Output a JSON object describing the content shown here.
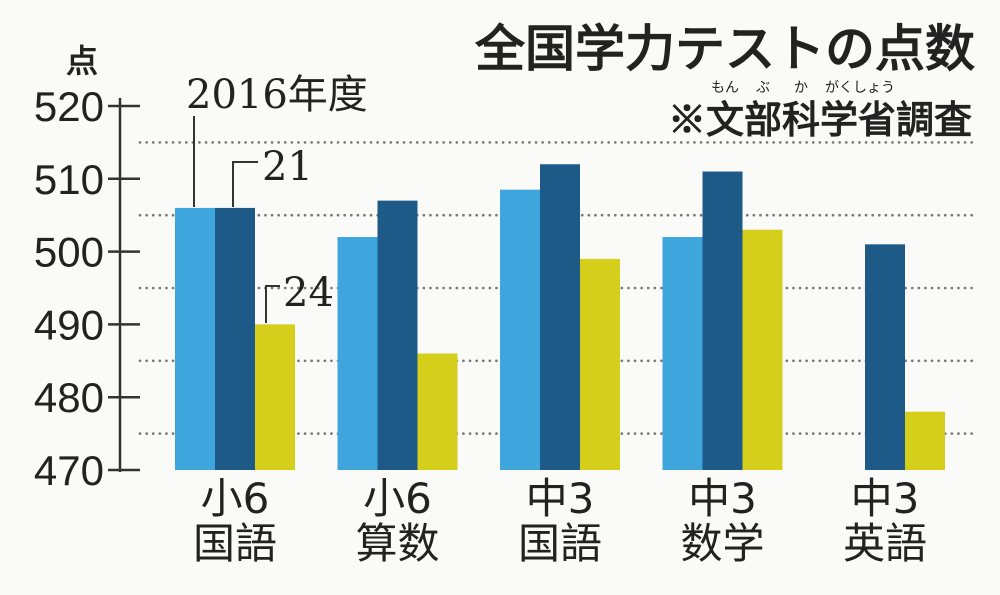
{
  "chart_data": {
    "type": "bar",
    "title": "全国学力テストの点数",
    "subtitle": "※文部科学省調査",
    "subtitle_ruby": [
      "もん",
      "ぶ",
      "か",
      "がくしょう"
    ],
    "ylabel": "点",
    "ylim": [
      470,
      520
    ],
    "yticks": [
      520,
      510,
      500,
      490,
      480,
      470
    ],
    "categories": [
      [
        "小6",
        "国語"
      ],
      [
        "小6",
        "算数"
      ],
      [
        "中3",
        "国語"
      ],
      [
        "中3",
        "数学"
      ],
      [
        "中3",
        "英語"
      ]
    ],
    "series": [
      {
        "name": "2016年度",
        "color": "#3ea6dd",
        "values": [
          506,
          502,
          508.5,
          502,
          null
        ]
      },
      {
        "name": "21",
        "color": "#1e5a87",
        "values": [
          506,
          507,
          512,
          511,
          501
        ]
      },
      {
        "name": "24",
        "color": "#d5ce1b",
        "values": [
          490,
          486,
          499,
          503,
          478
        ]
      }
    ],
    "grid": "dotted",
    "legend": "inline"
  }
}
